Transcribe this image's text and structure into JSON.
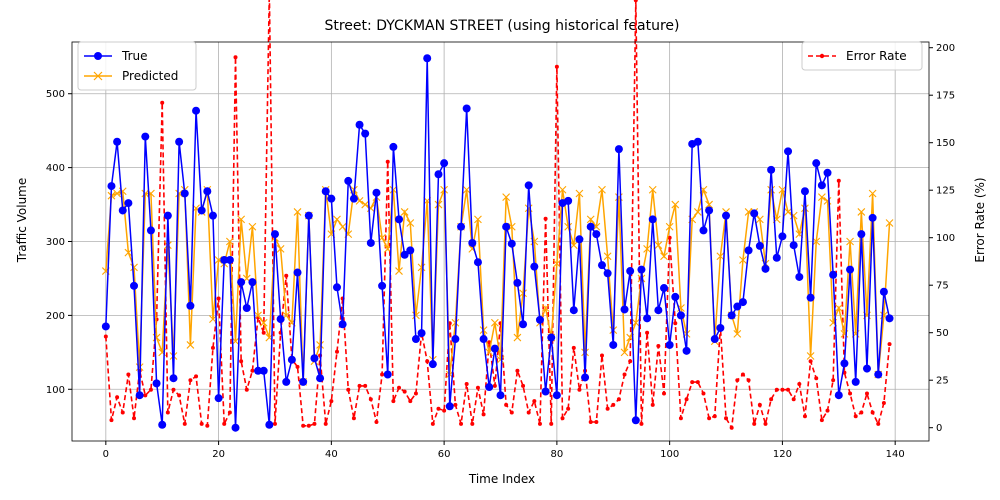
{
  "chart_data": {
    "type": "line",
    "title": "Street: DYCKMAN STREET (using historical feature)",
    "xlabel": "Time Index",
    "ylabel": "Traffic Volume",
    "y2label": "Error Rate (%)",
    "xlim": [
      -6,
      146
    ],
    "ylim": [
      30,
      570
    ],
    "y2lim": [
      -7,
      203
    ],
    "xticks": [
      0,
      20,
      40,
      60,
      80,
      100,
      120,
      140
    ],
    "yticks": [
      100,
      200,
      300,
      400,
      500
    ],
    "y2ticks": [
      0,
      25,
      50,
      75,
      100,
      125,
      150,
      175,
      200
    ],
    "grid": true,
    "legend_left_position": "upper-left",
    "legend_right_position": "upper-right",
    "colors": {
      "true": "#0000ff",
      "predicted": "#ffa500",
      "error": "#ff0000"
    },
    "series": [
      {
        "name": "True",
        "axis": "left",
        "values": [
          185,
          375,
          435,
          342,
          352,
          240,
          92,
          442,
          315,
          108,
          52,
          335,
          115,
          435,
          365,
          213,
          477,
          342,
          368,
          335,
          88,
          275,
          275,
          48,
          245,
          210,
          245,
          125,
          125,
          52,
          310,
          195,
          110,
          140,
          258,
          110,
          335,
          142,
          115,
          368,
          358,
          238,
          188,
          382,
          358,
          458,
          446,
          298,
          366,
          240,
          120,
          428,
          330,
          282,
          288,
          168,
          176,
          548,
          134,
          391,
          406,
          77,
          168,
          320,
          480,
          298,
          272,
          168,
          103,
          155,
          92,
          320,
          297,
          244,
          188,
          376,
          266,
          194,
          97,
          170,
          92,
          352,
          355,
          207,
          303,
          116,
          320,
          310,
          268,
          257,
          160,
          425,
          208,
          260,
          58,
          262,
          196,
          330,
          207,
          237,
          160,
          225,
          200,
          152,
          432,
          435,
          315,
          342,
          168,
          183,
          335,
          200,
          212,
          218,
          288,
          338,
          294,
          263,
          397,
          278,
          307,
          422,
          295,
          252,
          368,
          224,
          406,
          376,
          393,
          255,
          92,
          135,
          262,
          110,
          310,
          128,
          332,
          120,
          232,
          196
        ]
      },
      {
        "name": "Predicted",
        "axis": "left",
        "values": [
          260,
          362,
          365,
          368,
          285,
          265,
          130,
          365,
          365,
          170,
          150,
          295,
          145,
          365,
          370,
          160,
          345,
          340,
          370,
          195,
          275,
          270,
          300,
          165,
          330,
          250,
          320,
          200,
          190,
          170,
          305,
          290,
          200,
          190,
          340,
          110,
          335,
          138,
          160,
          370,
          310,
          330,
          320,
          310,
          370,
          355,
          350,
          345,
          360,
          305,
          290,
          370,
          260,
          340,
          325,
          200,
          265,
          355,
          140,
          350,
          370,
          120,
          190,
          320,
          370,
          290,
          330,
          180,
          150,
          190,
          140,
          360,
          320,
          170,
          230,
          345,
          300,
          190,
          210,
          170,
          270,
          370,
          320,
          295,
          365,
          150,
          330,
          320,
          370,
          280,
          180,
          360,
          150,
          170,
          190,
          250,
          290,
          370,
          295,
          280,
          320,
          350,
          210,
          175,
          330,
          340,
          370,
          350,
          165,
          280,
          340,
          200,
          175,
          275,
          340,
          340,
          330,
          270,
          370,
          330,
          370,
          340,
          335,
          310,
          345,
          145,
          300,
          360,
          355,
          190,
          210,
          175,
          300,
          175,
          340,
          200,
          365,
          120,
          200,
          325
        ]
      },
      {
        "name": "Error Rate",
        "axis": "right",
        "values": [
          48,
          4,
          16,
          8,
          28,
          5,
          30,
          17,
          20,
          57,
          171,
          8,
          20,
          17,
          2,
          25,
          27,
          2,
          1,
          42,
          68,
          2,
          8,
          195,
          35,
          20,
          30,
          58,
          50,
          230,
          2,
          50,
          80,
          36,
          32,
          1,
          1,
          2,
          38,
          2,
          14,
          40,
          68,
          20,
          5,
          22,
          22,
          15,
          3,
          28,
          140,
          14,
          21,
          19,
          14,
          18,
          50,
          35,
          2,
          10,
          9,
          55,
          12,
          2,
          23,
          2,
          21,
          7,
          45,
          22,
          55,
          12,
          8,
          30,
          22,
          8,
          14,
          2,
          110,
          2,
          190,
          5,
          10,
          42,
          20,
          30,
          3,
          3,
          38,
          10,
          12,
          15,
          28,
          35,
          225,
          2,
          50,
          12,
          43,
          18,
          100,
          55,
          5,
          15,
          24,
          24,
          18,
          5,
          6,
          53,
          5,
          0,
          25,
          28,
          25,
          2,
          12,
          2,
          15,
          20,
          20,
          20,
          15,
          23,
          6,
          35,
          26,
          4,
          9,
          25,
          130,
          29,
          18,
          6,
          8,
          18,
          8,
          2,
          13,
          44
        ]
      }
    ]
  }
}
